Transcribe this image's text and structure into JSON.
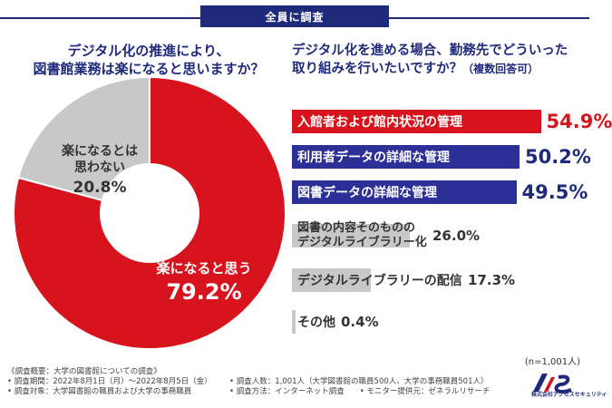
{
  "header": {
    "tab_label": "全員に調査"
  },
  "questions": {
    "left": [
      "デジタル化の推進により、",
      "図書館業務は楽になると思いますか？"
    ],
    "right_line1": "デジタル化を進める場合、勤務先でどういった",
    "right_line2": "取り組みを行いたいですか？",
    "right_sub": "（複数回答可）"
  },
  "colors": {
    "navy": "#1f2a7a",
    "red": "#d7141e",
    "gray": "#c8c8c8",
    "blue_bar": "#2b2f96"
  },
  "chart_data": [
    {
      "type": "pie",
      "slices": [
        {
          "label": "楽になると思う",
          "value": 79.2,
          "pct_text": "79.2%",
          "color": "#d7141e"
        },
        {
          "label_lines": [
            "楽になるとは",
            "思わない"
          ],
          "value": 20.8,
          "pct_text": "20.8%",
          "color": "#c8c8c8"
        }
      ]
    },
    {
      "type": "bar",
      "orientation": "horizontal",
      "max": 60,
      "n_note": "(n=1,001人)",
      "bars": [
        {
          "label": "入館者および館内状況の管理",
          "value": 54.9,
          "pct_text": "54.9%",
          "color": "#d7141e",
          "text_color": "#ffffff",
          "pct_color": "#d7141e",
          "pct_size": 21
        },
        {
          "label": "利用者データの詳細な管理",
          "value": 50.2,
          "pct_text": "50.2%",
          "color": "#2b2f96",
          "text_color": "#ffffff",
          "pct_color": "#1f2a7a",
          "pct_size": 21
        },
        {
          "label": "図書データの詳細な管理",
          "value": 49.5,
          "pct_text": "49.5%",
          "color": "#2b2f96",
          "text_color": "#ffffff",
          "pct_color": "#1f2a7a",
          "pct_size": 21
        },
        {
          "label_lines": [
            "図書の内容そのものの",
            "デジタルライブラリー化"
          ],
          "value": 26.0,
          "pct_text": "26.0%",
          "color": "#c8c8c8",
          "text_color": "#333333",
          "pct_color": "#333333",
          "pct_size": 15
        },
        {
          "label": "デジタルライブラリーの配信",
          "value": 17.3,
          "pct_text": "17.3%",
          "color": "#c8c8c8",
          "text_color": "#333333",
          "pct_color": "#333333",
          "pct_size": 15
        },
        {
          "label": "その他",
          "value": 0.4,
          "pct_text": "0.4%",
          "color": "#c8c8c8",
          "text_color": "#333333",
          "pct_color": "#333333",
          "pct_size": 15
        }
      ]
    }
  ],
  "footer": {
    "col1": [
      "《調査概要：大学の図書館についての調査》",
      "• 調査期間：2022年8月1日（月）～2022年8月5日（金）",
      "• 調査対象：大学図書館の職員および大学の事務職員"
    ],
    "col2": [
      "",
      "• 調査人数：1,001人（大学図書館の職員500人、大学の事務職員501人）",
      "• 調査方法：インターネット調査　　• モニター提供元：ゼネラルリサーチ"
    ]
  },
  "logo": {
    "mark": "AS",
    "company": "株式会社アクセスセキュリティ"
  }
}
